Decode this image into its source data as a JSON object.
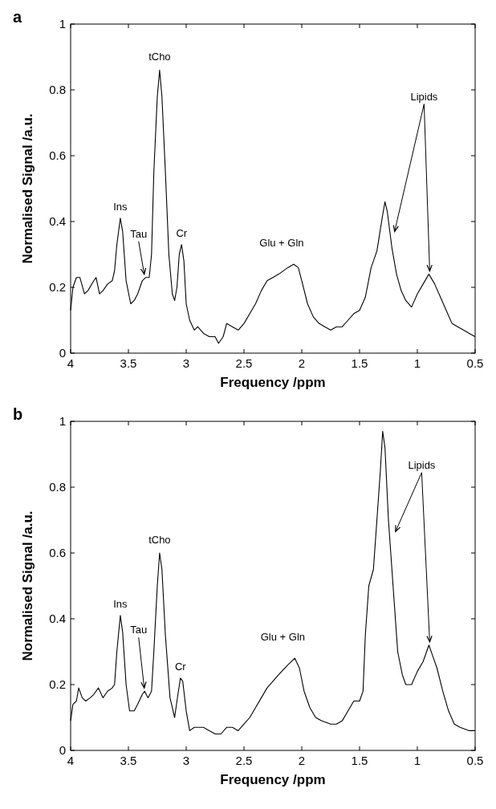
{
  "chart_data": [
    {
      "type": "line",
      "title": "a",
      "xlabel": "Frequency /ppm",
      "ylabel": "Normalised Signal /a.u.",
      "xlim": [
        4,
        0.5
      ],
      "ylim": [
        0,
        1
      ],
      "xticks": [
        4,
        3.5,
        3,
        2.5,
        2,
        1.5,
        1,
        0.5
      ],
      "yticks": [
        0,
        0.2,
        0.4,
        0.6,
        0.8,
        1
      ],
      "grid": false,
      "annotations": [
        {
          "text": "Ins",
          "x": 3.57,
          "y": 0.41
        },
        {
          "text": "Tau",
          "x": 3.37,
          "y": 0.23
        },
        {
          "text": "tCho",
          "x": 3.23,
          "y": 0.86
        },
        {
          "text": "Cr",
          "x": 3.04,
          "y": 0.33
        },
        {
          "text": "Glu + Gln",
          "x": 2.07,
          "y": 0.27
        },
        {
          "text": "Lipids",
          "x": 0.9,
          "y": 0.24
        }
      ],
      "series": [
        {
          "color": "#000000",
          "x": [
            4.0,
            3.98,
            3.95,
            3.92,
            3.88,
            3.85,
            3.8,
            3.78,
            3.75,
            3.72,
            3.68,
            3.64,
            3.62,
            3.6,
            3.57,
            3.55,
            3.52,
            3.48,
            3.45,
            3.42,
            3.38,
            3.35,
            3.32,
            3.3,
            3.28,
            3.25,
            3.23,
            3.21,
            3.18,
            3.15,
            3.12,
            3.1,
            3.08,
            3.06,
            3.04,
            3.02,
            3.0,
            2.97,
            2.93,
            2.9,
            2.85,
            2.8,
            2.75,
            2.72,
            2.68,
            2.65,
            2.6,
            2.55,
            2.5,
            2.45,
            2.4,
            2.35,
            2.3,
            2.25,
            2.2,
            2.12,
            2.07,
            2.03,
            2.0,
            1.95,
            1.9,
            1.85,
            1.8,
            1.75,
            1.7,
            1.65,
            1.6,
            1.55,
            1.5,
            1.45,
            1.4,
            1.35,
            1.3,
            1.28,
            1.26,
            1.22,
            1.18,
            1.14,
            1.1,
            1.05,
            1.0,
            0.95,
            0.9,
            0.85,
            0.8,
            0.75,
            0.7,
            0.65,
            0.6,
            0.55,
            0.5
          ],
          "values": [
            0.13,
            0.2,
            0.23,
            0.23,
            0.18,
            0.19,
            0.22,
            0.23,
            0.18,
            0.19,
            0.21,
            0.22,
            0.25,
            0.33,
            0.41,
            0.37,
            0.22,
            0.15,
            0.16,
            0.18,
            0.22,
            0.23,
            0.23,
            0.3,
            0.55,
            0.78,
            0.86,
            0.78,
            0.55,
            0.3,
            0.18,
            0.16,
            0.2,
            0.3,
            0.33,
            0.28,
            0.15,
            0.1,
            0.07,
            0.08,
            0.06,
            0.05,
            0.05,
            0.03,
            0.05,
            0.09,
            0.08,
            0.07,
            0.09,
            0.12,
            0.15,
            0.19,
            0.22,
            0.23,
            0.24,
            0.26,
            0.27,
            0.26,
            0.22,
            0.15,
            0.11,
            0.09,
            0.08,
            0.07,
            0.08,
            0.08,
            0.1,
            0.12,
            0.13,
            0.17,
            0.26,
            0.31,
            0.42,
            0.46,
            0.43,
            0.32,
            0.24,
            0.19,
            0.16,
            0.14,
            0.18,
            0.21,
            0.24,
            0.21,
            0.17,
            0.13,
            0.09,
            0.08,
            0.07,
            0.06,
            0.05
          ]
        }
      ]
    },
    {
      "type": "line",
      "title": "b",
      "xlabel": "Frequency /ppm",
      "ylabel": "Normalised Signal /a.u.",
      "xlim": [
        4,
        0.5
      ],
      "ylim": [
        0,
        1
      ],
      "xticks": [
        4,
        3.5,
        3,
        2.5,
        2,
        1.5,
        1,
        0.5
      ],
      "yticks": [
        0,
        0.2,
        0.4,
        0.6,
        0.8,
        1
      ],
      "grid": false,
      "annotations": [
        {
          "text": "Ins",
          "x": 3.57,
          "y": 0.41
        },
        {
          "text": "Tau",
          "x": 3.37,
          "y": 0.18
        },
        {
          "text": "tCho",
          "x": 3.23,
          "y": 0.6
        },
        {
          "text": "Cr",
          "x": 3.05,
          "y": 0.22
        },
        {
          "text": "Glu + Gln",
          "x": 2.06,
          "y": 0.28
        },
        {
          "text": "Lipids",
          "x": 0.9,
          "y": 0.32
        }
      ],
      "series": [
        {
          "color": "#000000",
          "x": [
            4.0,
            3.98,
            3.95,
            3.93,
            3.9,
            3.87,
            3.83,
            3.8,
            3.76,
            3.72,
            3.68,
            3.64,
            3.62,
            3.6,
            3.57,
            3.55,
            3.52,
            3.49,
            3.45,
            3.42,
            3.38,
            3.36,
            3.33,
            3.3,
            3.28,
            3.25,
            3.23,
            3.21,
            3.18,
            3.14,
            3.1,
            3.08,
            3.05,
            3.03,
            3.0,
            2.97,
            2.93,
            2.85,
            2.75,
            2.7,
            2.65,
            2.6,
            2.55,
            2.5,
            2.45,
            2.4,
            2.35,
            2.3,
            2.25,
            2.2,
            2.12,
            2.06,
            2.02,
            1.98,
            1.93,
            1.88,
            1.83,
            1.75,
            1.7,
            1.65,
            1.6,
            1.55,
            1.5,
            1.47,
            1.45,
            1.42,
            1.38,
            1.35,
            1.32,
            1.3,
            1.28,
            1.25,
            1.2,
            1.17,
            1.13,
            1.1,
            1.05,
            1.0,
            0.95,
            0.92,
            0.9,
            0.87,
            0.83,
            0.78,
            0.73,
            0.68,
            0.63,
            0.55,
            0.5
          ],
          "values": [
            0.09,
            0.14,
            0.15,
            0.19,
            0.16,
            0.15,
            0.16,
            0.17,
            0.19,
            0.16,
            0.18,
            0.19,
            0.2,
            0.3,
            0.41,
            0.36,
            0.2,
            0.12,
            0.12,
            0.14,
            0.17,
            0.18,
            0.16,
            0.18,
            0.3,
            0.5,
            0.6,
            0.55,
            0.35,
            0.16,
            0.1,
            0.15,
            0.22,
            0.21,
            0.12,
            0.06,
            0.07,
            0.07,
            0.05,
            0.05,
            0.07,
            0.07,
            0.06,
            0.08,
            0.1,
            0.13,
            0.16,
            0.19,
            0.21,
            0.23,
            0.26,
            0.28,
            0.25,
            0.18,
            0.13,
            0.1,
            0.09,
            0.08,
            0.08,
            0.09,
            0.12,
            0.15,
            0.15,
            0.18,
            0.35,
            0.5,
            0.55,
            0.7,
            0.85,
            0.97,
            0.92,
            0.7,
            0.45,
            0.3,
            0.23,
            0.2,
            0.2,
            0.24,
            0.27,
            0.3,
            0.32,
            0.29,
            0.25,
            0.18,
            0.12,
            0.08,
            0.07,
            0.06,
            0.06
          ]
        }
      ]
    }
  ]
}
